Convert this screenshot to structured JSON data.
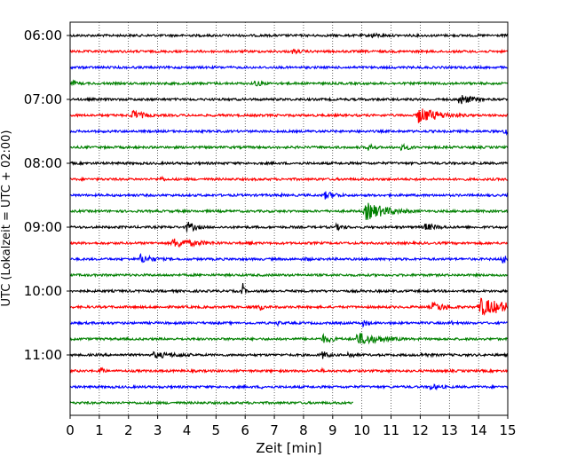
{
  "chart_data": {
    "type": "line",
    "xlabel": "Zeit  [min]",
    "ylabel": "UTC (Lokalzeit = UTC + 02:00)",
    "xlim": [
      0,
      15
    ],
    "x_ticks": [
      0,
      1,
      2,
      3,
      4,
      5,
      6,
      7,
      8,
      9,
      10,
      11,
      12,
      13,
      14,
      15
    ],
    "y_ticks": [
      {
        "label": "06:00",
        "trace": 0
      },
      {
        "label": "07:00",
        "trace": 4
      },
      {
        "label": "08:00",
        "trace": 8
      },
      {
        "label": "09:00",
        "trace": 12
      },
      {
        "label": "10:00",
        "trace": 16
      },
      {
        "label": "11:00",
        "trace": 20
      }
    ],
    "grid": "vertical-dotted",
    "trace_minutes": 15,
    "color_cycle": [
      "#000000",
      "#ff0000",
      "#0000ff",
      "#008000"
    ],
    "traces": [
      {
        "start": "06:00",
        "end_min": 15,
        "events": [
          {
            "t": 10.3,
            "a": 3,
            "w": 0.8
          }
        ]
      },
      {
        "start": "06:15",
        "end_min": 15,
        "events": [
          {
            "t": 7.6,
            "a": 3,
            "w": 0.6
          }
        ]
      },
      {
        "start": "06:30",
        "end_min": 15,
        "events": []
      },
      {
        "start": "06:45",
        "end_min": 15,
        "events": [
          {
            "t": 0.1,
            "a": 4,
            "w": 0.2
          },
          {
            "t": 6.3,
            "a": 4,
            "w": 0.5
          }
        ]
      },
      {
        "start": "07:00",
        "end_min": 15,
        "events": [
          {
            "t": 13.3,
            "a": 7,
            "w": 0.6
          }
        ]
      },
      {
        "start": "07:15",
        "end_min": 15,
        "events": [
          {
            "t": 2.1,
            "a": 7,
            "w": 0.5
          },
          {
            "t": 11.9,
            "a": 10,
            "w": 0.9
          }
        ]
      },
      {
        "start": "07:30",
        "end_min": 15,
        "events": [
          {
            "t": 14.9,
            "a": 8,
            "w": 0.15
          }
        ]
      },
      {
        "start": "07:45",
        "end_min": 15,
        "events": [
          {
            "t": 10.2,
            "a": 5,
            "w": 0.3
          },
          {
            "t": 11.3,
            "a": 4,
            "w": 0.6
          }
        ]
      },
      {
        "start": "08:00",
        "end_min": 15,
        "events": []
      },
      {
        "start": "08:15",
        "end_min": 15,
        "events": [
          {
            "t": 3.1,
            "a": 5,
            "w": 0.15
          }
        ]
      },
      {
        "start": "08:30",
        "end_min": 15,
        "events": [
          {
            "t": 7.2,
            "a": 4,
            "w": 0.1
          },
          {
            "t": 8.7,
            "a": 5,
            "w": 0.6
          }
        ]
      },
      {
        "start": "08:45",
        "end_min": 15,
        "events": [
          {
            "t": 10.1,
            "a": 11,
            "w": 0.9
          },
          {
            "t": 11.5,
            "a": 3,
            "w": 0.3
          }
        ]
      },
      {
        "start": "09:00",
        "end_min": 15,
        "events": [
          {
            "t": 4.0,
            "a": 7,
            "w": 0.4
          },
          {
            "t": 9.1,
            "a": 4,
            "w": 0.5
          },
          {
            "t": 12.1,
            "a": 5,
            "w": 0.7
          }
        ]
      },
      {
        "start": "09:15",
        "end_min": 15,
        "events": [
          {
            "t": 3.5,
            "a": 6,
            "w": 1.2
          },
          {
            "t": 6.1,
            "a": 3,
            "w": 0.3
          }
        ]
      },
      {
        "start": "09:30",
        "end_min": 15,
        "events": [
          {
            "t": 2.4,
            "a": 6,
            "w": 0.6
          },
          {
            "t": 8.0,
            "a": 3,
            "w": 0.4
          },
          {
            "t": 14.8,
            "a": 6,
            "w": 0.5
          }
        ]
      },
      {
        "start": "09:45",
        "end_min": 15,
        "events": []
      },
      {
        "start": "10:00",
        "end_min": 15,
        "events": [
          {
            "t": 5.9,
            "a": 12,
            "w": 0.08
          }
        ]
      },
      {
        "start": "10:15",
        "end_min": 15,
        "events": [
          {
            "t": 6.5,
            "a": 7,
            "w": 0.1
          },
          {
            "t": 12.4,
            "a": 6,
            "w": 0.7
          },
          {
            "t": 14.0,
            "a": 11,
            "w": 1.3
          }
        ]
      },
      {
        "start": "10:30",
        "end_min": 15,
        "events": [
          {
            "t": 7.1,
            "a": 6,
            "w": 0.1
          },
          {
            "t": 10.0,
            "a": 5,
            "w": 0.3
          },
          {
            "t": 13.0,
            "a": 3,
            "w": 0.4
          }
        ]
      },
      {
        "start": "10:45",
        "end_min": 15,
        "events": [
          {
            "t": 8.6,
            "a": 6,
            "w": 0.5
          },
          {
            "t": 9.8,
            "a": 8,
            "w": 1.0
          }
        ]
      },
      {
        "start": "11:00",
        "end_min": 15,
        "events": [
          {
            "t": 2.8,
            "a": 4,
            "w": 1.5
          },
          {
            "t": 8.6,
            "a": 6,
            "w": 0.3
          },
          {
            "t": 9.5,
            "a": 4,
            "w": 0.4
          },
          {
            "t": 12.0,
            "a": 3,
            "w": 0.7
          }
        ]
      },
      {
        "start": "11:15",
        "end_min": 15,
        "events": [
          {
            "t": 1.05,
            "a": 10,
            "w": 0.08
          },
          {
            "t": 8.6,
            "a": 4,
            "w": 0.1
          }
        ]
      },
      {
        "start": "11:30",
        "end_min": 15,
        "events": [
          {
            "t": 6.5,
            "a": 3,
            "w": 0.2
          },
          {
            "t": 12.3,
            "a": 4,
            "w": 0.6
          }
        ]
      },
      {
        "start": "11:45",
        "end_min": 9.7,
        "events": []
      }
    ]
  }
}
